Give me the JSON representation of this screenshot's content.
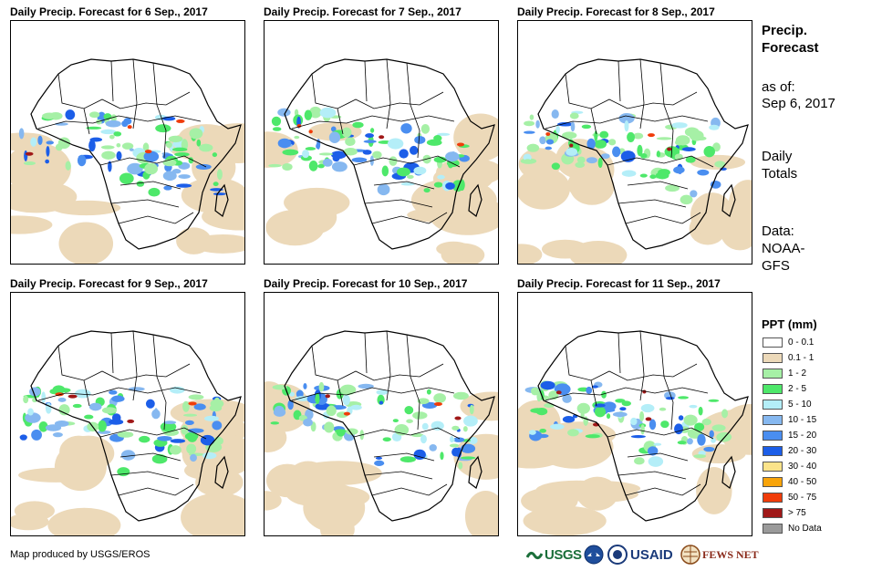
{
  "panels": [
    {
      "title": "Daily Precip. Forecast for 6 Sep., 2017"
    },
    {
      "title": "Daily Precip. Forecast for 7 Sep., 2017"
    },
    {
      "title": "Daily Precip. Forecast for 8 Sep., 2017"
    },
    {
      "title": "Daily Precip. Forecast for 9 Sep., 2017"
    },
    {
      "title": "Daily Precip. Forecast for 10 Sep., 2017"
    },
    {
      "title": "Daily Precip. Forecast for 11 Sep., 2017"
    }
  ],
  "sidebar": {
    "heading_line1": "Precip.",
    "heading_line2": "Forecast",
    "asof_label": "as of:",
    "asof_date": "Sep 6, 2017",
    "totals_line1": "Daily",
    "totals_line2": "Totals",
    "data_line1": "Data:",
    "data_line2": "NOAA-",
    "data_line3": "GFS"
  },
  "legend": {
    "title": "PPT (mm)",
    "items": [
      {
        "label": "0 - 0.1",
        "color": "#ffffff"
      },
      {
        "label": "0.1 - 1",
        "color": "#ecd9b9"
      },
      {
        "label": "1 - 2",
        "color": "#a6f0a6"
      },
      {
        "label": "2 - 5",
        "color": "#4ee86a"
      },
      {
        "label": "5 - 10",
        "color": "#b4eef8"
      },
      {
        "label": "10 - 15",
        "color": "#86b8f0"
      },
      {
        "label": "15 - 20",
        "color": "#4a8ef0"
      },
      {
        "label": "20 - 30",
        "color": "#1c5ee8"
      },
      {
        "label": "30 - 40",
        "color": "#fbe38a"
      },
      {
        "label": "40 - 50",
        "color": "#f8a40a"
      },
      {
        "label": "50 - 75",
        "color": "#f03c0a"
      },
      {
        "label": "> 75",
        "color": "#a01818"
      },
      {
        "label": "No Data",
        "color": "#9a9a9a"
      }
    ]
  },
  "footer": {
    "credit": "Map produced by USGS/EROS",
    "logos": {
      "usgs": "USGS",
      "noaa": "NOAA",
      "usaid": "USAID",
      "fewsnet": "FEWS NET"
    }
  }
}
